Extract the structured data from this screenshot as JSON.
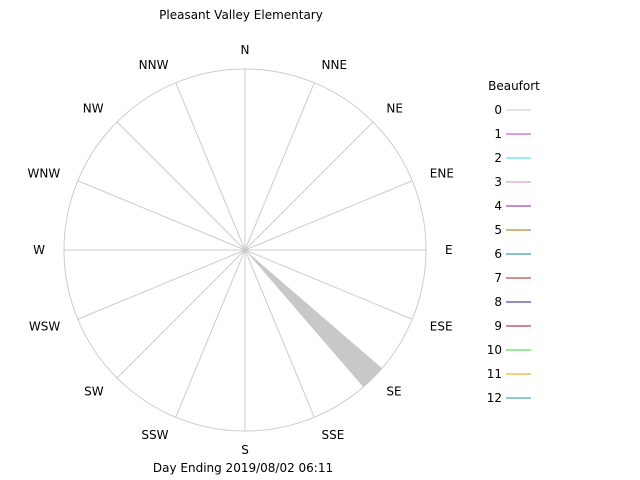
{
  "chart_data": {
    "type": "wind-rose",
    "title": "Pleasant Valley Elementary",
    "footer": "Day Ending 2019/08/02 06:11",
    "directions": [
      "N",
      "NNE",
      "NE",
      "ENE",
      "E",
      "ESE",
      "SE",
      "SSE",
      "S",
      "SSW",
      "SW",
      "WSW",
      "W",
      "WNW",
      "NW",
      "NNW"
    ],
    "legend": {
      "title": "Beaufort",
      "entries": [
        {
          "label": "0",
          "color": "#c8c8c8"
        },
        {
          "label": "1",
          "color": "#cc33cc"
        },
        {
          "label": "2",
          "color": "#33dddd"
        },
        {
          "label": "3",
          "color": "#e080c0"
        },
        {
          "label": "4",
          "color": "#882299"
        },
        {
          "label": "5",
          "color": "#aa6611"
        },
        {
          "label": "6",
          "color": "#118888"
        },
        {
          "label": "7",
          "color": "#aa2222"
        },
        {
          "label": "8",
          "color": "#222288"
        },
        {
          "label": "9",
          "color": "#991133"
        },
        {
          "label": "10",
          "color": "#33dd33"
        },
        {
          "label": "11",
          "color": "#ee9900"
        },
        {
          "label": "12",
          "color": "#229999"
        }
      ]
    },
    "series": [
      {
        "beaufort": "0",
        "direction": "SE",
        "fraction_of_max_radius": 1.0
      }
    ],
    "grid": true
  }
}
